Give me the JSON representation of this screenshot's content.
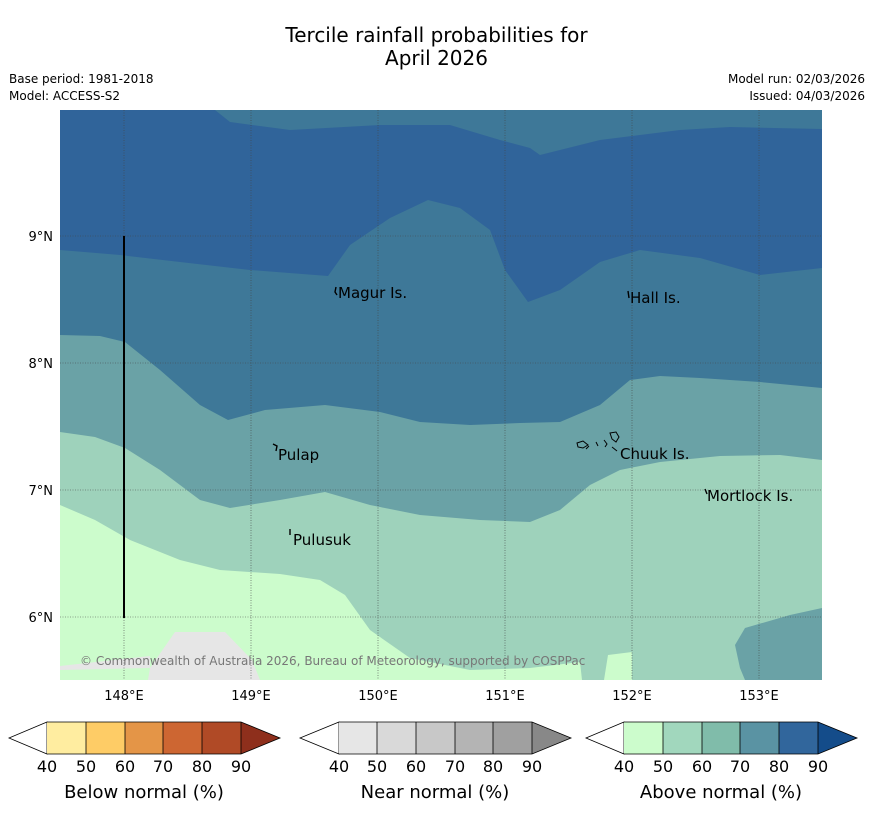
{
  "title": {
    "line1": "Tercile rainfall probabilities for",
    "line2": "April 2026"
  },
  "meta": {
    "base_period": "Base period: 1981-2018",
    "model": "Model: ACCESS-S2",
    "model_run": "Model run: 02/03/2026",
    "issued": "Issued: 04/03/2026"
  },
  "axes": {
    "lon_labels": [
      "148°E",
      "149°E",
      "150°E",
      "151°E",
      "152°E",
      "153°E"
    ],
    "lat_labels": [
      "9°N",
      "8°N",
      "7°N",
      "6°N"
    ]
  },
  "places": {
    "magur": "Magur Is.",
    "hall": "Hall Is.",
    "pulap": "Pulap",
    "chuuk": "Chuuk Is.",
    "mortlock": "Mortlock Is.",
    "pulusuk": "Pulusuk"
  },
  "copyright": "© Commonwealth of Australia 2026, Bureau of Meteorology, supported by COSPPac",
  "colorbars": {
    "below": {
      "label": "Below normal (%)",
      "ticks": [
        "40",
        "50",
        "60",
        "70",
        "80",
        "90"
      ],
      "colors": [
        "#ffffff",
        "#ffeda0",
        "#fecc66",
        "#e49547",
        "#cd6632",
        "#b04a26",
        "#8e2f1c"
      ]
    },
    "near": {
      "label": "Near normal (%)",
      "ticks": [
        "40",
        "50",
        "60",
        "70",
        "80",
        "90"
      ],
      "colors": [
        "#ffffff",
        "#e6e6e6",
        "#d9d9d9",
        "#c8c8c8",
        "#b4b4b4",
        "#a0a0a0",
        "#888888"
      ]
    },
    "above": {
      "label": "Above normal (%)",
      "ticks": [
        "40",
        "50",
        "60",
        "70",
        "80",
        "90"
      ],
      "colors": [
        "#ffffff",
        "#ccfccc",
        "#a1d7bd",
        "#80bcaa",
        "#5a93a3",
        "#31669c",
        "#144c8a"
      ]
    }
  },
  "map_colors": {
    "band_80_90": "#30649a",
    "band_70_80": "#3e7898",
    "band_60_70": "#6aa2a6",
    "band_50_60": "#9ed2bb",
    "band_40_50": "#ccfccc",
    "near_normal": "#e6e6e6"
  }
}
